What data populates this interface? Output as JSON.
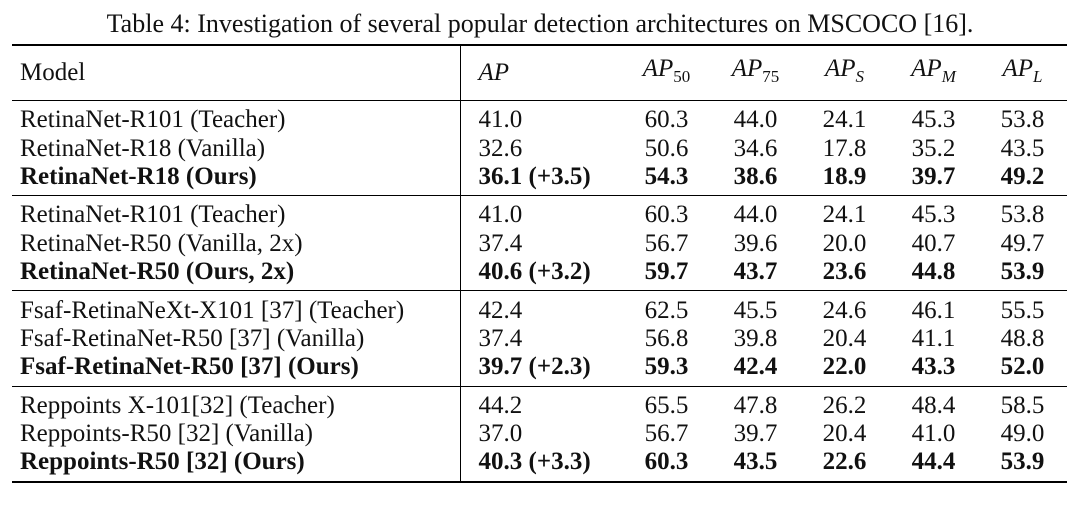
{
  "caption": "Table 4: Investigation of several popular detection architectures on MSCOCO [16].",
  "header": {
    "model": "Model",
    "ap": "AP",
    "ap50": {
      "base": "AP",
      "sub": "50"
    },
    "ap75": {
      "base": "AP",
      "sub": "75"
    },
    "aps": {
      "base": "AP",
      "sub": "S"
    },
    "apm": {
      "base": "AP",
      "sub": "M"
    },
    "apl": {
      "base": "AP",
      "sub": "L"
    }
  },
  "groups": [
    {
      "rows": [
        {
          "model": "RetinaNet-R101 (Teacher)",
          "ap": "41.0",
          "ap50": "60.3",
          "ap75": "44.0",
          "aps": "24.1",
          "apm": "45.3",
          "apl": "53.8"
        },
        {
          "model": "RetinaNet-R18 (Vanilla)",
          "ap": "32.6",
          "ap50": "50.6",
          "ap75": "34.6",
          "aps": "17.8",
          "apm": "35.2",
          "apl": "43.5"
        },
        {
          "model": "RetinaNet-R18 (Ours)",
          "ap": "36.1 (+3.5)",
          "ap50": "54.3",
          "ap75": "38.6",
          "aps": "18.9",
          "apm": "39.7",
          "apl": "49.2"
        }
      ]
    },
    {
      "rows": [
        {
          "model": "RetinaNet-R101 (Teacher)",
          "ap": "41.0",
          "ap50": "60.3",
          "ap75": "44.0",
          "aps": "24.1",
          "apm": "45.3",
          "apl": "53.8"
        },
        {
          "model": "RetinaNet-R50 (Vanilla, 2x)",
          "ap": "37.4",
          "ap50": "56.7",
          "ap75": "39.6",
          "aps": "20.0",
          "apm": "40.7",
          "apl": "49.7"
        },
        {
          "model": "RetinaNet-R50 (Ours, 2x)",
          "ap": "40.6 (+3.2)",
          "ap50": "59.7",
          "ap75": "43.7",
          "aps": "23.6",
          "apm": "44.8",
          "apl": "53.9"
        }
      ]
    },
    {
      "rows": [
        {
          "model": "Fsaf-RetinaNeXt-X101 [37] (Teacher)",
          "ap": "42.4",
          "ap50": "62.5",
          "ap75": "45.5",
          "aps": "24.6",
          "apm": "46.1",
          "apl": "55.5"
        },
        {
          "model": "Fsaf-RetinaNet-R50 [37] (Vanilla)",
          "ap": "37.4",
          "ap50": "56.8",
          "ap75": "39.8",
          "aps": "20.4",
          "apm": "41.1",
          "apl": "48.8"
        },
        {
          "model": "Fsaf-RetinaNet-R50 [37] (Ours)",
          "ap": "39.7 (+2.3)",
          "ap50": "59.3",
          "ap75": "42.4",
          "aps": "22.0",
          "apm": "43.3",
          "apl": "52.0"
        }
      ]
    },
    {
      "rows": [
        {
          "model": "Reppoints X-101[32] (Teacher)",
          "ap": "44.2",
          "ap50": "65.5",
          "ap75": "47.8",
          "aps": "26.2",
          "apm": "48.4",
          "apl": "58.5"
        },
        {
          "model": "Reppoints-R50 [32] (Vanilla)",
          "ap": "37.0",
          "ap50": "56.7",
          "ap75": "39.7",
          "aps": "20.4",
          "apm": "41.0",
          "apl": "49.0"
        },
        {
          "model": "Reppoints-R50 [32] (Ours)",
          "ap": "40.3 (+3.3)",
          "ap50": "60.3",
          "ap75": "43.5",
          "aps": "22.6",
          "apm": "44.4",
          "apl": "53.9"
        }
      ]
    }
  ]
}
